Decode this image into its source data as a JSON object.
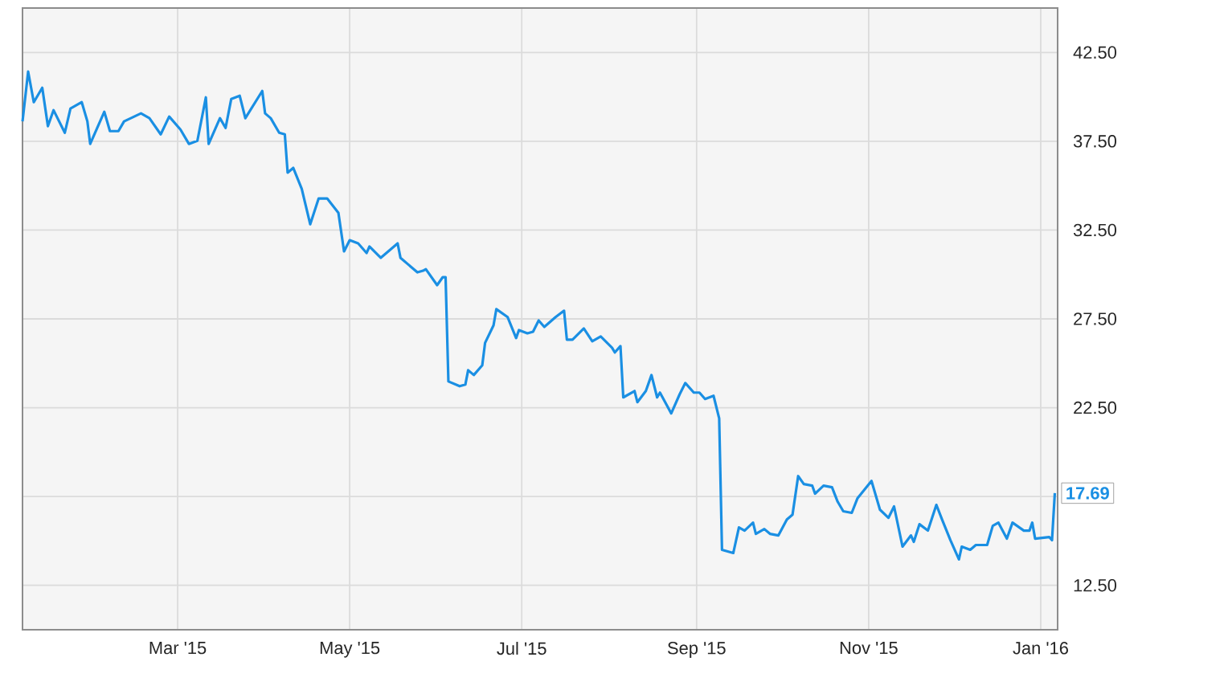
{
  "chart_data": {
    "type": "line",
    "color": "#1a8fe3",
    "grid": true,
    "xlim": [
      "2015-01-05",
      "2016-01-07"
    ],
    "ylim": [
      10,
      45
    ],
    "xticks": [
      {
        "value": "2015-03-01",
        "label": "Mar '15"
      },
      {
        "value": "2015-05-01",
        "label": "May '15"
      },
      {
        "value": "2015-07-01",
        "label": "Jul '15"
      },
      {
        "value": "2015-09-01",
        "label": "Sep '15"
      },
      {
        "value": "2015-11-01",
        "label": "Nov '15"
      },
      {
        "value": "2016-01-01",
        "label": "Jan '16"
      }
    ],
    "yticks": [
      {
        "value": 12.5,
        "label": "12.50"
      },
      {
        "value": 17.5,
        "label": null
      },
      {
        "value": 22.5,
        "label": "22.50"
      },
      {
        "value": 27.5,
        "label": "27.50"
      },
      {
        "value": 32.5,
        "label": "32.50"
      },
      {
        "value": 37.5,
        "label": "37.50"
      },
      {
        "value": 42.5,
        "label": "42.50"
      }
    ],
    "annotations": [
      {
        "text": "17.69",
        "x": "2016-01-06",
        "y": 17.69
      }
    ],
    "x": [
      "2015-01-05",
      "2015-01-07",
      "2015-01-09",
      "2015-01-12",
      "2015-01-14",
      "2015-01-16",
      "2015-01-20",
      "2015-01-22",
      "2015-01-26",
      "2015-01-28",
      "2015-01-29",
      "2015-02-03",
      "2015-02-05",
      "2015-02-08",
      "2015-02-10",
      "2015-02-16",
      "2015-02-19",
      "2015-02-23",
      "2015-02-26",
      "2015-03-02",
      "2015-03-05",
      "2015-03-08",
      "2015-03-11",
      "2015-03-12",
      "2015-03-16",
      "2015-03-18",
      "2015-03-20",
      "2015-03-23",
      "2015-03-25",
      "2015-03-31",
      "2015-04-01",
      "2015-04-03",
      "2015-04-06",
      "2015-04-08",
      "2015-04-09",
      "2015-04-11",
      "2015-04-14",
      "2015-04-17",
      "2015-04-20",
      "2015-04-23",
      "2015-04-27",
      "2015-04-29",
      "2015-05-01",
      "2015-05-04",
      "2015-05-07",
      "2015-05-08",
      "2015-05-12",
      "2015-05-18",
      "2015-05-19",
      "2015-05-25",
      "2015-05-27",
      "2015-05-28",
      "2015-06-01",
      "2015-06-03",
      "2015-06-04",
      "2015-06-05",
      "2015-06-09",
      "2015-06-11",
      "2015-06-12",
      "2015-06-14",
      "2015-06-17",
      "2015-06-18",
      "2015-06-21",
      "2015-06-22",
      "2015-06-26",
      "2015-06-29",
      "2015-06-30",
      "2015-07-03",
      "2015-07-05",
      "2015-07-07",
      "2015-07-09",
      "2015-07-13",
      "2015-07-16",
      "2015-07-17",
      "2015-07-19",
      "2015-07-23",
      "2015-07-26",
      "2015-07-29",
      "2015-08-02",
      "2015-08-03",
      "2015-08-05",
      "2015-08-06",
      "2015-08-10",
      "2015-08-11",
      "2015-08-14",
      "2015-08-16",
      "2015-08-18",
      "2015-08-19",
      "2015-08-23",
      "2015-08-26",
      "2015-08-28",
      "2015-08-31",
      "2015-09-02",
      "2015-09-04",
      "2015-09-07",
      "2015-09-09",
      "2015-09-10",
      "2015-09-14",
      "2015-09-16",
      "2015-09-18",
      "2015-09-21",
      "2015-09-22",
      "2015-09-25",
      "2015-09-27",
      "2015-09-30",
      "2015-10-03",
      "2015-10-05",
      "2015-10-07",
      "2015-10-09",
      "2015-10-12",
      "2015-10-13",
      "2015-10-16",
      "2015-10-19",
      "2015-10-21",
      "2015-10-23",
      "2015-10-26",
      "2015-10-28",
      "2015-11-02",
      "2015-11-05",
      "2015-11-08",
      "2015-11-10",
      "2015-11-13",
      "2015-11-16",
      "2015-11-17",
      "2015-11-19",
      "2015-11-22",
      "2015-11-25",
      "2015-11-27",
      "2015-11-30",
      "2015-12-03",
      "2015-12-04",
      "2015-12-07",
      "2015-12-09",
      "2015-12-13",
      "2015-12-15",
      "2015-12-17",
      "2015-12-20",
      "2015-12-22",
      "2015-12-26",
      "2015-12-28",
      "2015-12-29",
      "2015-12-30",
      "2016-01-04",
      "2016-01-05",
      "2016-01-06"
    ],
    "values": [
      38.62,
      41.42,
      39.7,
      40.51,
      38.35,
      39.25,
      37.98,
      39.34,
      39.7,
      38.62,
      37.35,
      39.16,
      38.07,
      38.07,
      38.62,
      39.07,
      38.8,
      37.89,
      38.89,
      38.16,
      37.35,
      37.53,
      39.97,
      37.35,
      38.8,
      38.25,
      39.88,
      40.06,
      38.8,
      40.33,
      39.07,
      38.8,
      37.98,
      37.89,
      35.73,
      36.0,
      34.82,
      32.83,
      34.28,
      34.28,
      33.47,
      31.3,
      31.93,
      31.75,
      31.21,
      31.57,
      30.94,
      31.75,
      30.94,
      30.12,
      30.21,
      30.3,
      29.4,
      29.85,
      29.85,
      23.98,
      23.71,
      23.8,
      24.61,
      24.34,
      24.89,
      26.15,
      27.14,
      28.05,
      27.6,
      26.42,
      26.87,
      26.69,
      26.78,
      27.41,
      27.05,
      27.6,
      27.96,
      26.33,
      26.33,
      26.96,
      26.24,
      26.51,
      25.88,
      25.61,
      25.97,
      23.08,
      23.44,
      22.81,
      23.44,
      24.34,
      23.08,
      23.35,
      22.18,
      23.26,
      23.89,
      23.35,
      23.35,
      22.99,
      23.17,
      21.9,
      14.5,
      14.32,
      15.76,
      15.58,
      16.03,
      15.4,
      15.67,
      15.4,
      15.31,
      16.21,
      16.48,
      18.65,
      18.2,
      18.11,
      17.66,
      18.11,
      18.02,
      17.21,
      16.67,
      16.58,
      17.39,
      18.38,
      16.76,
      16.3,
      16.94,
      14.68,
      15.31,
      14.95,
      15.94,
      15.58,
      17.03,
      16.21,
      15.04,
      13.96,
      14.68,
      14.5,
      14.77,
      14.77,
      15.85,
      16.03,
      15.13,
      16.03,
      15.58,
      15.58,
      16.03,
      15.13,
      15.22,
      15.04,
      17.69
    ]
  }
}
